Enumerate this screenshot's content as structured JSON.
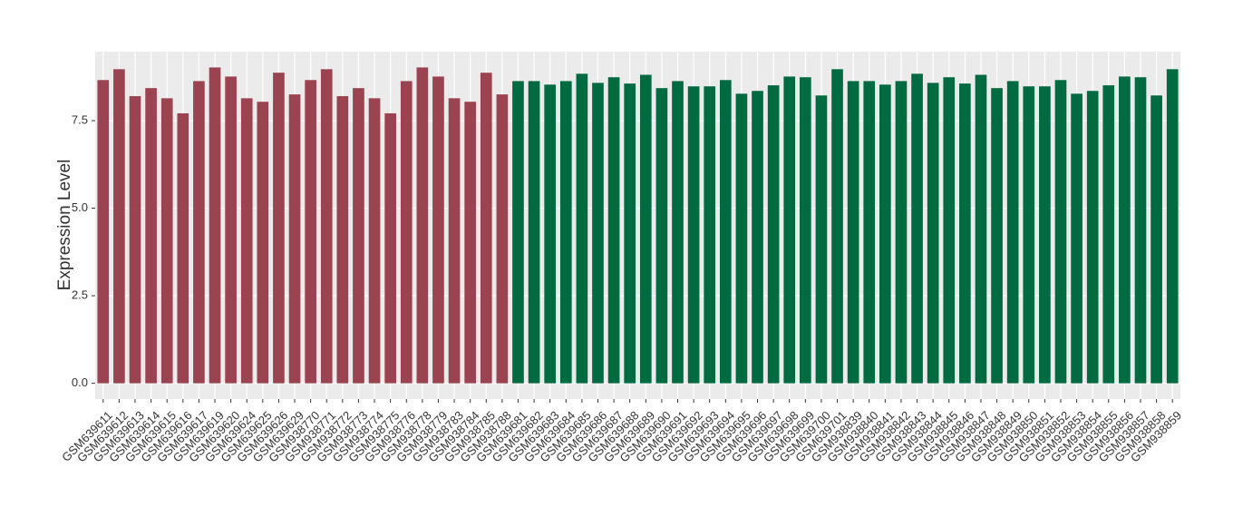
{
  "chart_data": {
    "type": "bar",
    "y_label": "Expression Level",
    "categories": [
      "GSM639611",
      "GSM639612",
      "GSM639613",
      "GSM639614",
      "GSM639615",
      "GSM639616",
      "GSM639617",
      "GSM639619",
      "GSM639620",
      "GSM639624",
      "GSM639625",
      "GSM639626",
      "GSM639629",
      "GSM938770",
      "GSM938771",
      "GSM938772",
      "GSM938773",
      "GSM938774",
      "GSM938775",
      "GSM938776",
      "GSM938778",
      "GSM938779",
      "GSM938783",
      "GSM938784",
      "GSM938785",
      "GSM938788",
      "GSM639681",
      "GSM639682",
      "GSM639683",
      "GSM639684",
      "GSM639685",
      "GSM639686",
      "GSM639687",
      "GSM639688",
      "GSM639689",
      "GSM639690",
      "GSM639691",
      "GSM639692",
      "GSM639693",
      "GSM639694",
      "GSM639695",
      "GSM639696",
      "GSM639697",
      "GSM639698",
      "GSM639699",
      "GSM639700",
      "GSM639701",
      "GSM938839",
      "GSM938840",
      "GSM938841",
      "GSM938842",
      "GSM938843",
      "GSM938844",
      "GSM938845",
      "GSM938846",
      "GSM938847",
      "GSM938848",
      "GSM938849",
      "GSM938850",
      "GSM938851",
      "GSM938852",
      "GSM938853",
      "GSM938854",
      "GSM938855",
      "GSM938856",
      "GSM938857",
      "GSM938858",
      "GSM938859"
    ],
    "values": [
      8.66,
      8.97,
      8.2,
      8.43,
      8.14,
      7.71,
      8.63,
      9.02,
      8.76,
      8.14,
      8.04,
      8.87,
      8.25,
      8.66,
      8.97,
      8.2,
      8.43,
      8.14,
      7.71,
      8.63,
      9.02,
      8.76,
      8.14,
      8.04,
      8.87,
      8.25,
      8.63,
      8.63,
      8.53,
      8.63,
      8.84,
      8.58,
      8.74,
      8.56,
      8.81,
      8.43,
      8.63,
      8.48,
      8.48,
      8.66,
      8.27,
      8.35,
      8.51,
      8.76,
      8.74,
      8.22,
      8.97,
      8.63,
      8.63,
      8.53,
      8.63,
      8.84,
      8.58,
      8.74,
      8.56,
      8.81,
      8.43,
      8.63,
      8.48,
      8.48,
      8.66,
      8.27,
      8.35,
      8.51,
      8.76,
      8.74,
      8.22,
      8.97
    ],
    "colors": [
      "#9b4350",
      "#9b4350",
      "#9b4350",
      "#9b4350",
      "#9b4350",
      "#9b4350",
      "#9b4350",
      "#9b4350",
      "#9b4350",
      "#9b4350",
      "#9b4350",
      "#9b4350",
      "#9b4350",
      "#9b4350",
      "#9b4350",
      "#9b4350",
      "#9b4350",
      "#9b4350",
      "#9b4350",
      "#9b4350",
      "#9b4350",
      "#9b4350",
      "#9b4350",
      "#9b4350",
      "#9b4350",
      "#9b4350",
      "#006a41",
      "#006a41",
      "#006a41",
      "#006a41",
      "#006a41",
      "#006a41",
      "#006a41",
      "#006a41",
      "#006a41",
      "#006a41",
      "#006a41",
      "#006a41",
      "#006a41",
      "#006a41",
      "#006a41",
      "#006a41",
      "#006a41",
      "#006a41",
      "#006a41",
      "#006a41",
      "#006a41",
      "#006a41",
      "#006a41",
      "#006a41",
      "#006a41",
      "#006a41",
      "#006a41",
      "#006a41",
      "#006a41",
      "#006a41",
      "#006a41",
      "#006a41",
      "#006a41",
      "#006a41",
      "#006a41",
      "#006a41",
      "#006a41",
      "#006a41",
      "#006a41",
      "#006a41",
      "#006a41",
      "#006a41"
    ],
    "ylim": [
      -0.45,
      9.47
    ],
    "yticks": [
      {
        "value": 0,
        "label": "0.0"
      },
      2.5,
      {
        "value": 5,
        "label": "5.0"
      },
      7.5
    ],
    "grid": true
  }
}
